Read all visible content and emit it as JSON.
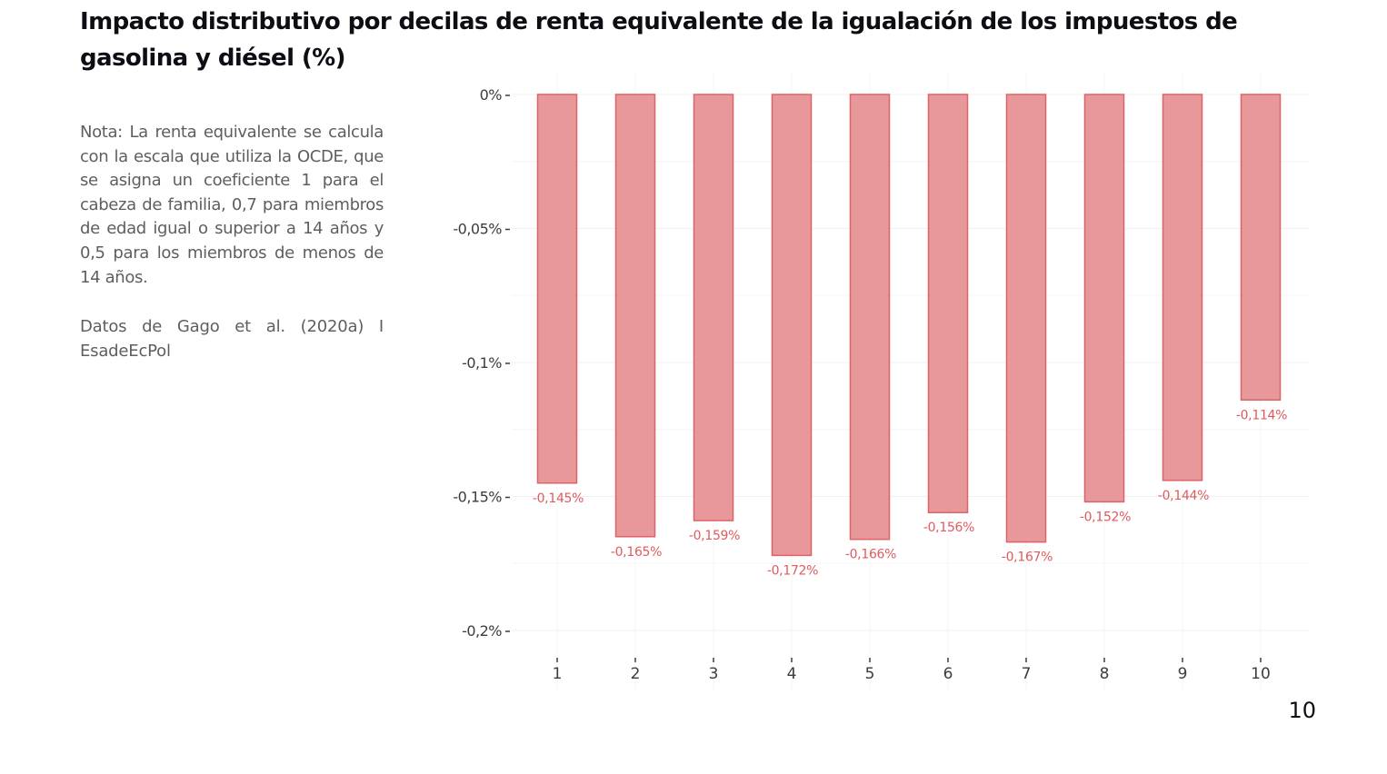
{
  "header": {
    "title": "Impacto distributivo por decilas de renta equivalente de la igualación de los impuestos de gasolina y diésel (%)"
  },
  "sidebar": {
    "note": "Nota: La renta equivalente se calcula con la escala que utiliza la OCDE, que se asigna un coeficiente 1 para el cabeza de familia, 0,7 para miembros de edad igual o superior a 14 años y 0,5 para los miembros de menos de 14 años.",
    "source": "Datos de Gago et al. (2020a) I EsadeEcPol"
  },
  "footer": {
    "page_number": "10"
  },
  "colors": {
    "bar_fill": "#e8989a",
    "bar_stroke": "#e06266",
    "data_label": "#e05a5e",
    "grid": "#f0f0f0",
    "axis_text": "#3c3c3c"
  },
  "chart_data": {
    "type": "bar",
    "title": "Impacto distributivo por decilas de renta equivalente de la igualación de los impuestos de gasolina y diésel (%)",
    "xlabel": "",
    "ylabel": "",
    "categories": [
      "1",
      "2",
      "3",
      "4",
      "5",
      "6",
      "7",
      "8",
      "9",
      "10"
    ],
    "values": [
      -0.145,
      -0.165,
      -0.159,
      -0.172,
      -0.166,
      -0.156,
      -0.167,
      -0.152,
      -0.144,
      -0.114
    ],
    "data_labels": [
      "-0,145%",
      "-0,165%",
      "-0,159%",
      "-0,172%",
      "-0,166%",
      "-0,156%",
      "-0,167%",
      "-0,152%",
      "-0,144%",
      "-0,114%"
    ],
    "yticks": [
      0,
      -0.05,
      -0.1,
      -0.15,
      -0.2
    ],
    "ytick_labels": [
      "0%",
      "-0,05%",
      "-0,1%",
      "-0,15%",
      "-0,2%"
    ],
    "ylim": [
      -0.2,
      0
    ],
    "grid": true,
    "legend": "none"
  }
}
